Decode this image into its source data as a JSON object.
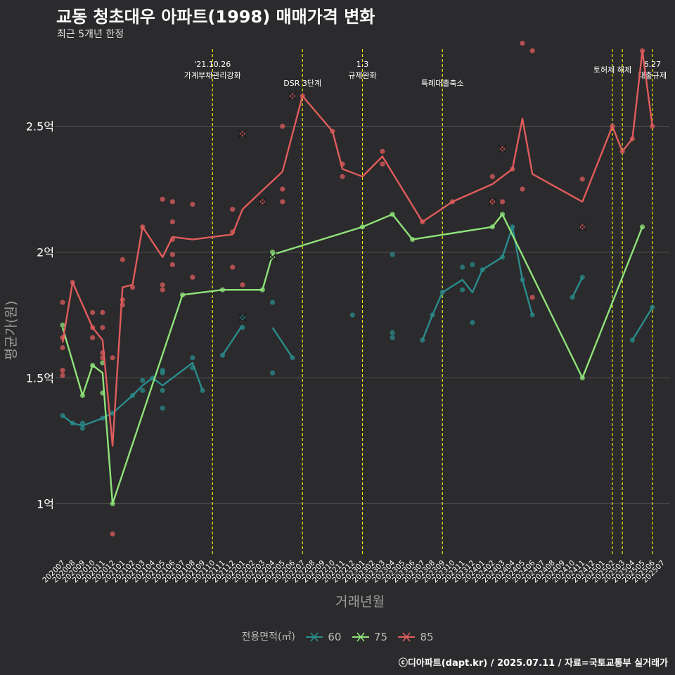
{
  "title": "교동 청초대우 아파트(1998) 매매가격 변화",
  "subtitle": "최근 5개년 한정",
  "caption": "ⓒ디아파트(dapt.kr) / 2025.07.11 / 자료=국토교통부 실거래가",
  "legend": {
    "title": "전용면적(㎡)",
    "items": [
      {
        "label": "60",
        "color": "#2a8c8c"
      },
      {
        "label": "75",
        "color": "#8fe37a"
      },
      {
        "label": "85",
        "color": "#e05c5c"
      }
    ]
  },
  "chart_data": {
    "type": "line",
    "xlabel": "거래년월",
    "ylabel": "평균가(원)",
    "ylim": [
      0.8,
      2.82
    ],
    "y_ticks": [
      {
        "value": 1.0,
        "label": "1억"
      },
      {
        "value": 1.5,
        "label": "1.5억"
      },
      {
        "value": 2.0,
        "label": "2억"
      },
      {
        "value": 2.5,
        "label": "2.5억"
      }
    ],
    "categories": [
      "202007",
      "202008",
      "202009",
      "202010",
      "202011",
      "202012",
      "202101",
      "202102",
      "202103",
      "202104",
      "202105",
      "202106",
      "202107",
      "202108",
      "202109",
      "202110",
      "202111",
      "202112",
      "202201",
      "202202",
      "202203",
      "202204",
      "202205",
      "202206",
      "202207",
      "202208",
      "202209",
      "202210",
      "202211",
      "202212",
      "202301",
      "202302",
      "202303",
      "202304",
      "202305",
      "202306",
      "202307",
      "202308",
      "202309",
      "202310",
      "202311",
      "202312",
      "202401",
      "202402",
      "202403",
      "202404",
      "202405",
      "202406",
      "202407",
      "202408",
      "202409",
      "202410",
      "202411",
      "202412",
      "202501",
      "202502",
      "202503",
      "202504",
      "202505",
      "202506",
      "202507"
    ],
    "annotations": [
      {
        "month": "202110",
        "label": "'21.10.26\n가계부채관리강화",
        "color": "#ffff00"
      },
      {
        "month": "202207",
        "label": "DSR 3단계",
        "color": "#ffff00"
      },
      {
        "month": "202301",
        "label": "1.3\n규제완화",
        "color": "#ffff00"
      },
      {
        "month": "202309",
        "label": "특례대출축소",
        "color": "#ffff00"
      },
      {
        "month": "202502",
        "label": "토허제 해제",
        "color": "#ffff00"
      },
      {
        "month": "202503",
        "label": "",
        "color": "#ffff00"
      },
      {
        "month": "202506",
        "label": "6.27\n대출규제",
        "color": "#ffff00"
      }
    ],
    "series": [
      {
        "name": "60",
        "color": "#2a8c8c",
        "lines": [
          [
            [
              "202007",
              1.35
            ],
            [
              "202008",
              1.32
            ],
            [
              "202009",
              1.31
            ],
            [
              "202011",
              1.34
            ],
            [
              "202012",
              1.36
            ],
            [
              "202102",
              1.43
            ],
            [
              "202103",
              1.47
            ],
            [
              "202104",
              1.5
            ],
            [
              "202105",
              1.47
            ],
            [
              "202108",
              1.56
            ],
            [
              "202109",
              1.45
            ]
          ],
          [
            [
              "202111",
              1.59
            ],
            [
              "202201",
              1.71
            ]
          ],
          [
            [
              "202204",
              1.7
            ],
            [
              "202206",
              1.58
            ]
          ],
          [
            [
              "202307",
              1.65
            ],
            [
              "202308",
              1.75
            ],
            [
              "202309",
              1.84
            ],
            [
              "202311",
              1.89
            ],
            [
              "202312",
              1.84
            ],
            [
              "202401",
              1.93
            ],
            [
              "202403",
              1.98
            ],
            [
              "202404",
              2.1
            ],
            [
              "202405",
              1.89
            ],
            [
              "202406",
              1.75
            ]
          ],
          [
            [
              "202410",
              1.82
            ],
            [
              "202411",
              1.9
            ]
          ],
          [
            [
              "202504",
              1.65
            ],
            [
              "202506",
              1.78
            ]
          ]
        ],
        "points": [
          [
            "202007",
            1.35
          ],
          [
            "202008",
            1.32
          ],
          [
            "202009",
            1.32
          ],
          [
            "202009",
            1.3
          ],
          [
            "202011",
            1.34
          ],
          [
            "202012",
            1.36
          ],
          [
            "202102",
            1.43
          ],
          [
            "202103",
            1.45
          ],
          [
            "202103",
            1.49
          ],
          [
            "202104",
            1.5
          ],
          [
            "202105",
            1.52
          ],
          [
            "202105",
            1.53
          ],
          [
            "202105",
            1.45
          ],
          [
            "202105",
            1.38
          ],
          [
            "202108",
            1.58
          ],
          [
            "202108",
            1.54
          ],
          [
            "202109",
            1.45
          ],
          [
            "202111",
            1.59
          ],
          [
            "202201",
            1.7
          ],
          [
            "202204",
            1.8
          ],
          [
            "202204",
            1.52
          ],
          [
            "202206",
            1.58
          ],
          [
            "202212",
            1.75
          ],
          [
            "202304",
            1.99
          ],
          [
            "202304",
            1.68
          ],
          [
            "202304",
            1.66
          ],
          [
            "202307",
            1.65
          ],
          [
            "202308",
            1.75
          ],
          [
            "202309",
            1.84
          ],
          [
            "202311",
            1.94
          ],
          [
            "202311",
            1.85
          ],
          [
            "202312",
            1.95
          ],
          [
            "202312",
            1.72
          ],
          [
            "202401",
            1.93
          ],
          [
            "202403",
            1.98
          ],
          [
            "202404",
            2.1
          ],
          [
            "202405",
            1.89
          ],
          [
            "202406",
            1.75
          ],
          [
            "202410",
            1.82
          ],
          [
            "202411",
            1.9
          ],
          [
            "202504",
            1.65
          ],
          [
            "202506",
            1.78
          ]
        ],
        "cancelled": [
          [
            "202201",
            1.74
          ]
        ]
      },
      {
        "name": "75",
        "color": "#8fe37a",
        "lines": [
          [
            [
              "202007",
              1.7
            ],
            [
              "202009",
              1.43
            ],
            [
              "202010",
              1.55
            ],
            [
              "202011",
              1.52
            ],
            [
              "202012",
              1.0
            ],
            [
              "202107",
              1.83
            ],
            [
              "202111",
              1.85
            ],
            [
              "202203",
              1.85
            ],
            [
              "202204",
              1.99
            ],
            [
              "202301",
              2.1
            ],
            [
              "202304",
              2.15
            ],
            [
              "202306",
              2.05
            ],
            [
              "202402",
              2.1
            ],
            [
              "202403",
              2.15
            ],
            [
              "202411",
              1.5
            ],
            [
              "202505",
              2.1
            ]
          ]
        ],
        "points": [
          [
            "202007",
            1.71
          ],
          [
            "202009",
            1.43
          ],
          [
            "202010",
            1.55
          ],
          [
            "202011",
            1.44
          ],
          [
            "202011",
            1.56
          ],
          [
            "202012",
            1.0
          ],
          [
            "202107",
            1.83
          ],
          [
            "202111",
            1.85
          ],
          [
            "202203",
            1.85
          ],
          [
            "202204",
            2.0
          ],
          [
            "202301",
            2.1
          ],
          [
            "202304",
            2.15
          ],
          [
            "202306",
            2.05
          ],
          [
            "202402",
            2.1
          ],
          [
            "202403",
            2.15
          ],
          [
            "202411",
            1.5
          ],
          [
            "202505",
            2.1
          ]
        ],
        "cancelled": [
          [
            "202204",
            1.98
          ]
        ]
      },
      {
        "name": "85",
        "color": "#e05c5c",
        "lines": [
          [
            [
              "202007",
              1.64
            ],
            [
              "202008",
              1.88
            ],
            [
              "202010",
              1.7
            ],
            [
              "202011",
              1.65
            ],
            [
              "202012",
              1.23
            ],
            [
              "202101",
              1.86
            ],
            [
              "202102",
              1.87
            ],
            [
              "202103",
              2.1
            ],
            [
              "202105",
              1.98
            ],
            [
              "202106",
              2.06
            ],
            [
              "202108",
              2.05
            ],
            [
              "202112",
              2.07
            ],
            [
              "202201",
              2.17
            ],
            [
              "202205",
              2.32
            ],
            [
              "202207",
              2.62
            ],
            [
              "202210",
              2.48
            ],
            [
              "202211",
              2.33
            ],
            [
              "202301",
              2.3
            ],
            [
              "202303",
              2.38
            ],
            [
              "202307",
              2.12
            ],
            [
              "202310",
              2.2
            ],
            [
              "202402",
              2.27
            ],
            [
              "202404",
              2.33
            ],
            [
              "202405",
              2.53
            ],
            [
              "202406",
              2.31
            ],
            [
              "202411",
              2.2
            ],
            [
              "202502",
              2.5
            ],
            [
              "202503",
              2.4
            ],
            [
              "202504",
              2.45
            ],
            [
              "202505",
              2.8
            ],
            [
              "202506",
              2.5
            ]
          ]
        ],
        "points": [
          [
            "202007",
            1.8
          ],
          [
            "202007",
            1.66
          ],
          [
            "202007",
            1.62
          ],
          [
            "202007",
            1.53
          ],
          [
            "202007",
            1.51
          ],
          [
            "202008",
            1.88
          ],
          [
            "202010",
            1.76
          ],
          [
            "202010",
            1.7
          ],
          [
            "202010",
            1.66
          ],
          [
            "202011",
            1.76
          ],
          [
            "202011",
            1.7
          ],
          [
            "202011",
            1.6
          ],
          [
            "202011",
            1.58
          ],
          [
            "202012",
            1.58
          ],
          [
            "202012",
            0.88
          ],
          [
            "202101",
            1.97
          ],
          [
            "202101",
            1.81
          ],
          [
            "202101",
            1.79
          ],
          [
            "202102",
            1.86
          ],
          [
            "202103",
            2.1
          ],
          [
            "202105",
            2.21
          ],
          [
            "202105",
            1.87
          ],
          [
            "202105",
            1.85
          ],
          [
            "202106",
            2.2
          ],
          [
            "202106",
            2.12
          ],
          [
            "202106",
            2.05
          ],
          [
            "202106",
            1.99
          ],
          [
            "202106",
            1.95
          ],
          [
            "202108",
            2.19
          ],
          [
            "202108",
            1.9
          ],
          [
            "202112",
            2.17
          ],
          [
            "202112",
            2.08
          ],
          [
            "202112",
            1.94
          ],
          [
            "202201",
            1.87
          ],
          [
            "202205",
            2.5
          ],
          [
            "202205",
            2.25
          ],
          [
            "202205",
            2.2
          ],
          [
            "202207",
            2.62
          ],
          [
            "202210",
            2.48
          ],
          [
            "202211",
            2.35
          ],
          [
            "202211",
            2.3
          ],
          [
            "202303",
            2.4
          ],
          [
            "202303",
            2.35
          ],
          [
            "202307",
            2.12
          ],
          [
            "202310",
            2.2
          ],
          [
            "202402",
            2.3
          ],
          [
            "202402",
            2.2
          ],
          [
            "202403",
            2.2
          ],
          [
            "202404",
            2.33
          ],
          [
            "202405",
            2.83
          ],
          [
            "202405",
            2.25
          ],
          [
            "202406",
            2.8
          ],
          [
            "202406",
            1.82
          ],
          [
            "202411",
            2.29
          ],
          [
            "202502",
            2.5
          ],
          [
            "202503",
            2.4
          ],
          [
            "202504",
            2.45
          ],
          [
            "202505",
            2.8
          ],
          [
            "202506",
            2.5
          ]
        ],
        "cancelled": [
          [
            "202201",
            2.47
          ],
          [
            "202203",
            2.2
          ],
          [
            "202206",
            2.62
          ],
          [
            "202402",
            2.2
          ],
          [
            "202403",
            2.41
          ],
          [
            "202411",
            2.1
          ]
        ]
      }
    ]
  }
}
